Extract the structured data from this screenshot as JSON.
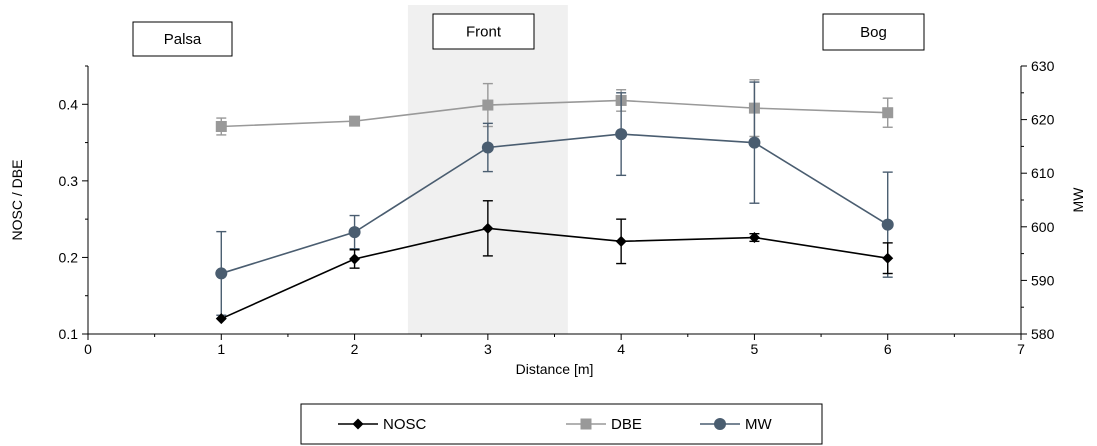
{
  "chart_data": {
    "type": "line",
    "x": [
      1,
      2,
      3,
      4,
      5,
      6
    ],
    "xlabel": "Distance [m]",
    "xlim": [
      0,
      7
    ],
    "xticks": [
      "0",
      "1",
      "2",
      "3",
      "4",
      "5",
      "6",
      "7"
    ],
    "y_left": {
      "label": "NOSC / DBE",
      "lim": [
        0.1,
        0.45
      ],
      "ticks": [
        "0.1",
        "0.2",
        "0.3",
        "0.4"
      ]
    },
    "y_right": {
      "label": "MW",
      "lim": [
        580,
        630
      ],
      "ticks": [
        "580",
        "590",
        "600",
        "610",
        "620",
        "630"
      ]
    },
    "regions": [
      {
        "label": "Palsa"
      },
      {
        "label": "Front",
        "x_range": [
          2.4,
          3.6
        ]
      },
      {
        "label": "Bog"
      }
    ],
    "series": [
      {
        "name": "NOSC",
        "axis": "left",
        "color": "#000000",
        "marker": "diamond",
        "values": [
          0.12,
          0.198,
          0.238,
          0.221,
          0.226,
          0.199
        ],
        "errors": [
          0.0,
          0.012,
          0.036,
          0.029,
          0.005,
          0.02
        ]
      },
      {
        "name": "DBE",
        "axis": "left",
        "color": "#999999",
        "marker": "square",
        "values": [
          0.371,
          0.378,
          0.399,
          0.405,
          0.395,
          0.389
        ],
        "errors": [
          0.011,
          0.0,
          0.028,
          0.014,
          0.037,
          0.019
        ]
      },
      {
        "name": "MW",
        "axis": "right",
        "color": "#4a5d70",
        "marker": "circle",
        "values": [
          591.3,
          599.0,
          614.8,
          617.3,
          615.7,
          600.4
        ],
        "errors": [
          7.8,
          3.1,
          4.5,
          7.7,
          11.3,
          9.8
        ]
      }
    ],
    "legend": {
      "position": "bottom-center"
    },
    "grid": false
  }
}
